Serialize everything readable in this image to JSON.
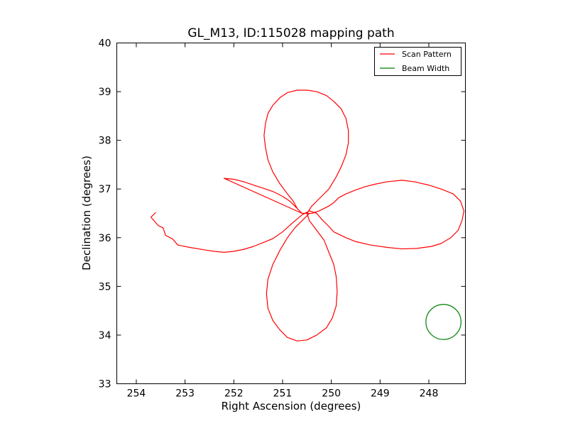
{
  "chart_data": {
    "type": "line",
    "title": "GL_M13, ID:115028 mapping path",
    "xlabel": "Right Ascension (degrees)",
    "ylabel": "Declination (degrees)",
    "xlim": [
      254.4,
      247.25
    ],
    "ylim": [
      33,
      40
    ],
    "xticks": [
      254,
      253,
      252,
      251,
      250,
      249,
      248
    ],
    "yticks": [
      33,
      34,
      35,
      36,
      37,
      38,
      39,
      40
    ],
    "grid": false,
    "legend_position": "top-right",
    "series": [
      {
        "name": "Scan Pattern",
        "color": "#ff0000",
        "points": [
          [
            253.6,
            36.52
          ],
          [
            253.7,
            36.42
          ],
          [
            253.62,
            36.33
          ],
          [
            253.55,
            36.25
          ],
          [
            253.45,
            36.2
          ],
          [
            253.4,
            36.05
          ],
          [
            253.25,
            35.97
          ],
          [
            253.15,
            35.85
          ],
          [
            252.9,
            35.8
          ],
          [
            252.6,
            35.75
          ],
          [
            252.4,
            35.72
          ],
          [
            252.2,
            35.7
          ],
          [
            252.0,
            35.72
          ],
          [
            251.8,
            35.76
          ],
          [
            251.6,
            35.82
          ],
          [
            251.4,
            35.9
          ],
          [
            251.2,
            35.98
          ],
          [
            251.0,
            36.12
          ],
          [
            250.8,
            36.3
          ],
          [
            250.6,
            36.47
          ],
          [
            250.45,
            36.55
          ],
          [
            250.3,
            36.5
          ],
          [
            250.2,
            36.38
          ],
          [
            250.05,
            36.23
          ],
          [
            249.95,
            36.12
          ],
          [
            249.7,
            36.0
          ],
          [
            249.5,
            35.92
          ],
          [
            249.2,
            35.85
          ],
          [
            248.85,
            35.8
          ],
          [
            248.55,
            35.77
          ],
          [
            248.25,
            35.78
          ],
          [
            247.95,
            35.82
          ],
          [
            247.75,
            35.88
          ],
          [
            247.55,
            36.0
          ],
          [
            247.4,
            36.15
          ],
          [
            247.32,
            36.35
          ],
          [
            247.28,
            36.55
          ],
          [
            247.35,
            36.75
          ],
          [
            247.5,
            36.9
          ],
          [
            247.75,
            37.0
          ],
          [
            248.0,
            37.08
          ],
          [
            248.3,
            37.15
          ],
          [
            248.55,
            37.18
          ],
          [
            248.85,
            37.15
          ],
          [
            249.1,
            37.1
          ],
          [
            249.3,
            37.05
          ],
          [
            249.5,
            36.98
          ],
          [
            249.7,
            36.9
          ],
          [
            249.85,
            36.82
          ],
          [
            249.95,
            36.72
          ],
          [
            250.05,
            36.65
          ],
          [
            250.25,
            36.55
          ],
          [
            250.4,
            36.5
          ],
          [
            250.6,
            36.5
          ],
          [
            250.7,
            36.6
          ],
          [
            250.85,
            36.75
          ],
          [
            251.0,
            36.85
          ],
          [
            251.2,
            36.95
          ],
          [
            251.5,
            37.05
          ],
          [
            251.8,
            37.15
          ],
          [
            252.0,
            37.2
          ],
          [
            252.2,
            37.22
          ],
          [
            250.6,
            36.5
          ],
          [
            250.7,
            36.6
          ],
          [
            250.78,
            36.75
          ],
          [
            250.9,
            36.9
          ],
          [
            251.05,
            37.1
          ],
          [
            251.2,
            37.35
          ],
          [
            251.3,
            37.6
          ],
          [
            251.35,
            37.85
          ],
          [
            251.38,
            38.1
          ],
          [
            251.35,
            38.35
          ],
          [
            251.3,
            38.55
          ],
          [
            251.2,
            38.72
          ],
          [
            251.05,
            38.88
          ],
          [
            250.9,
            38.98
          ],
          [
            250.7,
            39.03
          ],
          [
            250.5,
            39.03
          ],
          [
            250.3,
            39.0
          ],
          [
            250.1,
            38.92
          ],
          [
            249.95,
            38.8
          ],
          [
            249.8,
            38.65
          ],
          [
            249.7,
            38.45
          ],
          [
            249.65,
            38.2
          ],
          [
            249.65,
            37.95
          ],
          [
            249.7,
            37.7
          ],
          [
            249.8,
            37.45
          ],
          [
            249.9,
            37.25
          ],
          [
            250.05,
            37.0
          ],
          [
            250.2,
            36.85
          ],
          [
            250.4,
            36.65
          ],
          [
            250.5,
            36.5
          ],
          [
            250.45,
            36.35
          ],
          [
            250.3,
            36.15
          ],
          [
            250.15,
            35.95
          ],
          [
            250.05,
            35.7
          ],
          [
            249.95,
            35.45
          ],
          [
            249.9,
            35.2
          ],
          [
            249.88,
            34.9
          ],
          [
            249.9,
            34.6
          ],
          [
            249.98,
            34.35
          ],
          [
            250.1,
            34.15
          ],
          [
            250.3,
            34.0
          ],
          [
            250.5,
            33.9
          ],
          [
            250.7,
            33.88
          ],
          [
            250.9,
            33.95
          ],
          [
            251.05,
            34.1
          ],
          [
            251.2,
            34.3
          ],
          [
            251.3,
            34.55
          ],
          [
            251.33,
            34.85
          ],
          [
            251.3,
            35.15
          ],
          [
            251.2,
            35.45
          ],
          [
            251.05,
            35.75
          ],
          [
            250.9,
            36.0
          ],
          [
            250.75,
            36.2
          ],
          [
            250.6,
            36.35
          ],
          [
            250.45,
            36.5
          ]
        ]
      },
      {
        "name": "Beam Width",
        "color": "#007f00",
        "circle": {
          "center": [
            247.7,
            34.27
          ],
          "radius": 0.36
        }
      }
    ]
  }
}
